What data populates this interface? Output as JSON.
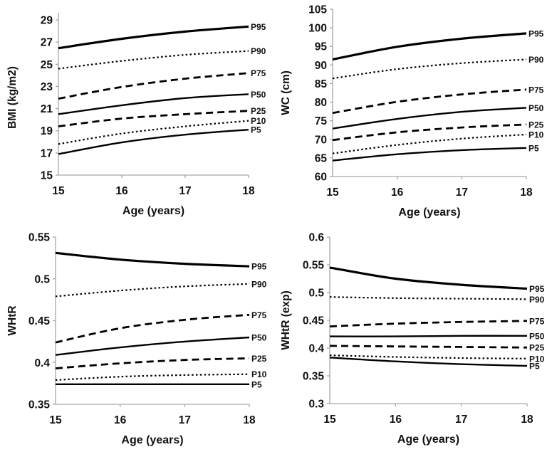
{
  "figure": {
    "description": "Smoothed percentile curves (P5-P95) by age for four adiposity measures",
    "percentile_labels": [
      "P95",
      "P90",
      "P75",
      "P50",
      "P25",
      "P10",
      "P5"
    ],
    "colors": {
      "curve": "#000000",
      "axis": "#a6a6a6",
      "text": "#111111",
      "background": "#ffffff"
    }
  },
  "chart_data": [
    {
      "type": "line",
      "panel": "top-left",
      "ylabel": "BMI (kg/m2)",
      "xlabel": "Age (years)",
      "x": [
        15,
        16,
        17,
        18
      ],
      "xtick_labels": [
        "15",
        "16",
        "17",
        "18"
      ],
      "ylim": [
        15,
        29
      ],
      "ytick_labels": [
        "15",
        "17",
        "19",
        "21",
        "23",
        "25",
        "27",
        "29"
      ],
      "grid": false,
      "legend_position": "right-end-of-line",
      "series": [
        {
          "name": "P95",
          "dash": "solid",
          "values": [
            26.45,
            27.3,
            27.95,
            28.4
          ]
        },
        {
          "name": "P90",
          "dash": "dotted",
          "values": [
            24.6,
            25.3,
            25.85,
            26.2
          ]
        },
        {
          "name": "P75",
          "dash": "dashed",
          "values": [
            21.9,
            22.95,
            23.7,
            24.2
          ]
        },
        {
          "name": "P50",
          "dash": "solid",
          "values": [
            20.5,
            21.3,
            21.95,
            22.3
          ]
        },
        {
          "name": "P25",
          "dash": "dashed",
          "values": [
            19.4,
            20.1,
            20.5,
            20.8
          ]
        },
        {
          "name": "P10",
          "dash": "dotted",
          "values": [
            17.8,
            18.75,
            19.4,
            19.9
          ]
        },
        {
          "name": "P5",
          "dash": "solid",
          "values": [
            16.9,
            17.95,
            18.65,
            19.1
          ]
        }
      ]
    },
    {
      "type": "line",
      "panel": "top-right",
      "ylabel": "WC (cm)",
      "xlabel": "Age (years)",
      "x": [
        15,
        16,
        17,
        18
      ],
      "xtick_labels": [
        "15",
        "16",
        "17",
        "18"
      ],
      "ylim": [
        60,
        105
      ],
      "ytick_labels": [
        "60",
        "65",
        "70",
        "75",
        "80",
        "85",
        "90",
        "95",
        "100",
        "105"
      ],
      "grid": false,
      "legend_position": "right-end-of-line",
      "series": [
        {
          "name": "P95",
          "dash": "solid",
          "values": [
            91.5,
            94.9,
            97.1,
            98.5
          ]
        },
        {
          "name": "P90",
          "dash": "dotted",
          "values": [
            86.4,
            88.9,
            90.5,
            91.5
          ]
        },
        {
          "name": "P75",
          "dash": "dashed",
          "values": [
            77.1,
            80.1,
            82.1,
            83.4
          ]
        },
        {
          "name": "P50",
          "dash": "solid",
          "values": [
            72.9,
            75.5,
            77.4,
            78.5
          ]
        },
        {
          "name": "P25",
          "dash": "dashed",
          "values": [
            69.8,
            71.9,
            73.2,
            74.0
          ]
        },
        {
          "name": "P10",
          "dash": "dotted",
          "values": [
            66.2,
            68.5,
            70.2,
            71.3
          ]
        },
        {
          "name": "P5",
          "dash": "solid",
          "values": [
            64.3,
            66.0,
            67.1,
            67.7
          ]
        }
      ]
    },
    {
      "type": "line",
      "panel": "bottom-left",
      "ylabel": "WHtR",
      "xlabel": "Age (years)",
      "x": [
        15,
        16,
        17,
        18
      ],
      "xtick_labels": [
        "15",
        "16",
        "17",
        "18"
      ],
      "ylim": [
        0.35,
        0.55
      ],
      "ytick_labels": [
        "0.35",
        "0.4",
        "0.45",
        "0.5",
        "0.55"
      ],
      "grid": false,
      "legend_position": "right-end-of-line",
      "series": [
        {
          "name": "P95",
          "dash": "solid",
          "values": [
            0.531,
            0.523,
            0.518,
            0.515
          ]
        },
        {
          "name": "P90",
          "dash": "dotted",
          "values": [
            0.479,
            0.486,
            0.491,
            0.494
          ]
        },
        {
          "name": "P75",
          "dash": "dashed",
          "values": [
            0.424,
            0.441,
            0.451,
            0.457
          ]
        },
        {
          "name": "P50",
          "dash": "solid",
          "values": [
            0.409,
            0.418,
            0.425,
            0.43
          ]
        },
        {
          "name": "P25",
          "dash": "dashed",
          "values": [
            0.393,
            0.399,
            0.403,
            0.405
          ]
        },
        {
          "name": "P10",
          "dash": "dotted",
          "values": [
            0.379,
            0.383,
            0.385,
            0.386
          ]
        },
        {
          "name": "P5",
          "dash": "solid",
          "values": [
            0.374,
            0.374,
            0.374,
            0.374
          ]
        }
      ]
    },
    {
      "type": "line",
      "panel": "bottom-right",
      "ylabel": "WHtR (exp)",
      "xlabel": "Age (years)",
      "x": [
        15,
        16,
        17,
        18
      ],
      "xtick_labels": [
        "15",
        "16",
        "17",
        "18"
      ],
      "ylim": [
        0.3,
        0.6
      ],
      "ytick_labels": [
        "0.3",
        "0.35",
        "0.4",
        "0.45",
        "0.5",
        "0.55",
        "0.6"
      ],
      "grid": false,
      "legend_position": "right-end-of-line",
      "series": [
        {
          "name": "P95",
          "dash": "solid",
          "values": [
            0.545,
            0.525,
            0.514,
            0.507
          ]
        },
        {
          "name": "P90",
          "dash": "dotted",
          "values": [
            0.492,
            0.49,
            0.489,
            0.488
          ]
        },
        {
          "name": "P75",
          "dash": "dashed",
          "values": [
            0.439,
            0.444,
            0.447,
            0.449
          ]
        },
        {
          "name": "P50",
          "dash": "solid",
          "values": [
            0.421,
            0.421,
            0.422,
            0.422
          ]
        },
        {
          "name": "P25",
          "dash": "dashed",
          "values": [
            0.404,
            0.403,
            0.402,
            0.401
          ]
        },
        {
          "name": "P10",
          "dash": "dotted",
          "values": [
            0.387,
            0.384,
            0.382,
            0.381
          ]
        },
        {
          "name": "P5",
          "dash": "solid",
          "values": [
            0.383,
            0.376,
            0.371,
            0.368
          ]
        }
      ]
    }
  ]
}
